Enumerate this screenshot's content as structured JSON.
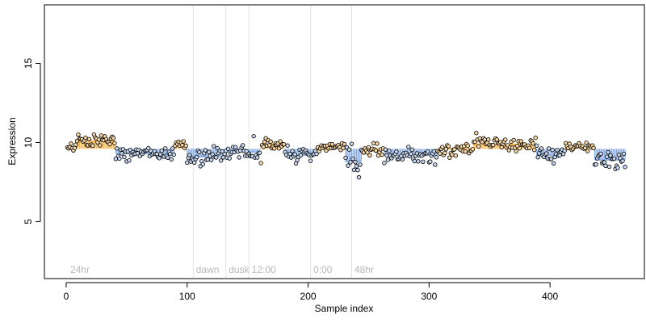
{
  "chart_data": {
    "type": "scatter",
    "title": "",
    "xlabel": "Sample index",
    "ylabel": "Expression",
    "xlim": [
      -18,
      478
    ],
    "ylim": [
      1.4,
      18.7
    ],
    "x_ticks": [
      0,
      100,
      200,
      300,
      400
    ],
    "y_ticks": [
      5,
      10,
      15
    ],
    "baseline": 9.6,
    "grid": false,
    "legend": "none",
    "colors": {
      "above": "#f5b041",
      "below": "#7ea6e0",
      "outline": "#000000",
      "annotation": "#b8b8b8",
      "vline": "#e2e2e2"
    },
    "annotations": [
      {
        "x": 2,
        "text": "24hr"
      },
      {
        "x": 106,
        "text": "dawn"
      },
      {
        "x": 133,
        "text": "dusk"
      },
      {
        "x": 152,
        "text": "12:00"
      },
      {
        "x": 203,
        "text": "0:00"
      },
      {
        "x": 237,
        "text": "48hr"
      }
    ],
    "vlines": [
      105,
      132,
      151,
      202,
      236
    ],
    "segments": [
      {
        "start": 1,
        "end": 8,
        "level": 9.7,
        "spread": 0.18
      },
      {
        "start": 9,
        "end": 40,
        "level": 10.1,
        "spread": 0.2
      },
      {
        "start": 41,
        "end": 89,
        "level": 9.3,
        "spread": 0.22
      },
      {
        "start": 90,
        "end": 99,
        "level": 9.9,
        "spread": 0.12
      },
      {
        "start": 100,
        "end": 130,
        "level": 9.1,
        "spread": 0.3
      },
      {
        "start": 131,
        "end": 160,
        "level": 9.4,
        "spread": 0.2
      },
      {
        "start": 161,
        "end": 180,
        "level": 9.9,
        "spread": 0.25
      },
      {
        "start": 181,
        "end": 207,
        "level": 9.2,
        "spread": 0.25
      },
      {
        "start": 208,
        "end": 230,
        "level": 9.7,
        "spread": 0.15
      },
      {
        "start": 231,
        "end": 244,
        "level": 8.8,
        "spread": 0.45
      },
      {
        "start": 245,
        "end": 262,
        "level": 9.6,
        "spread": 0.22
      },
      {
        "start": 263,
        "end": 306,
        "level": 9.2,
        "spread": 0.25
      },
      {
        "start": 307,
        "end": 336,
        "level": 9.6,
        "spread": 0.22
      },
      {
        "start": 337,
        "end": 388,
        "level": 9.9,
        "spread": 0.22
      },
      {
        "start": 389,
        "end": 412,
        "level": 9.2,
        "spread": 0.25
      },
      {
        "start": 413,
        "end": 436,
        "level": 9.7,
        "spread": 0.15
      },
      {
        "start": 437,
        "end": 462,
        "level": 8.9,
        "spread": 0.3
      }
    ],
    "outliers": [
      {
        "x": 111,
        "y": 8.5
      },
      {
        "x": 155,
        "y": 10.4
      },
      {
        "x": 161,
        "y": 8.7
      },
      {
        "x": 242,
        "y": 7.8
      },
      {
        "x": 240,
        "y": 8.5
      },
      {
        "x": 305,
        "y": 8.6
      },
      {
        "x": 339,
        "y": 10.6
      },
      {
        "x": 388,
        "y": 10.3
      },
      {
        "x": 456,
        "y": 8.4
      }
    ]
  }
}
